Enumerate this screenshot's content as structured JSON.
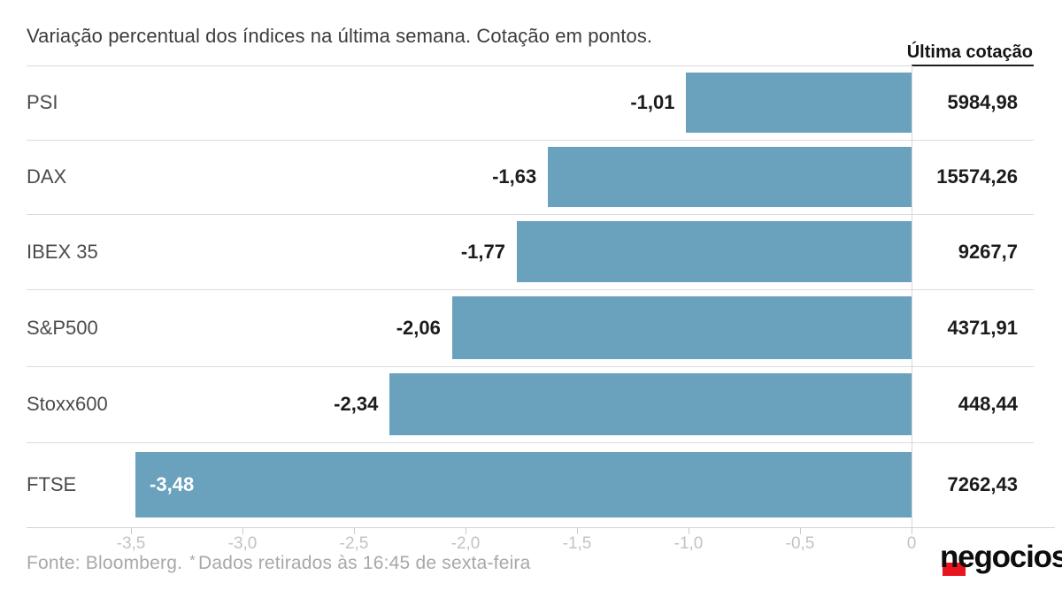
{
  "header": {
    "title": "Variação percentual dos índices na última semana. Cotação em pontos.",
    "last_quote_label": "Última cotação"
  },
  "chart_data": {
    "type": "bar",
    "orientation": "horizontal",
    "title": "Variação percentual dos índices na última semana. Cotação em pontos.",
    "categories": [
      "PSI",
      "DAX",
      "IBEX 35",
      "S&P500",
      "Stoxx600",
      "FTSE"
    ],
    "values": [
      -1.01,
      -1.63,
      -1.77,
      -2.06,
      -2.34,
      -3.48
    ],
    "value_labels": [
      "-1,01",
      "-1,63",
      "-1,77",
      "-2,06",
      "-2,34",
      "-3,48"
    ],
    "value_label_position": [
      "outside",
      "outside",
      "outside",
      "outside",
      "outside",
      "inside"
    ],
    "last_quote_column": "Última cotação",
    "last_quotes": [
      "5984,98",
      "15574,26",
      "9267,7",
      "4371,91",
      "448,44",
      "7262,43"
    ],
    "x_ticks": [
      -3.5,
      -3.0,
      -2.5,
      -2.0,
      -1.5,
      -1.0,
      -0.5,
      0
    ],
    "x_tick_labels": [
      "-3,5",
      "-3,0",
      "-2,5",
      "-2,0",
      "-1,5",
      "-1,0",
      "-0,5",
      "0"
    ],
    "xlim": [
      -3.97,
      0.64
    ],
    "grid": "off",
    "legend": "none",
    "bar_color": "#6aa2bd"
  },
  "footer": {
    "source": "Fonte: Bloomberg.",
    "asterisk": "*",
    "note": "Dados retirados às 16:45 de sexta-feira"
  },
  "logo": {
    "text": "negocios"
  },
  "colors": {
    "bar": "#6aa2bd",
    "accent_red": "#e8141e",
    "value_text": "#1c1c1c",
    "category_text": "#4b4b4b",
    "tick_text": "#c3c3c7",
    "footer_text": "#a8a8a8",
    "separator": "#dcdcdc"
  }
}
